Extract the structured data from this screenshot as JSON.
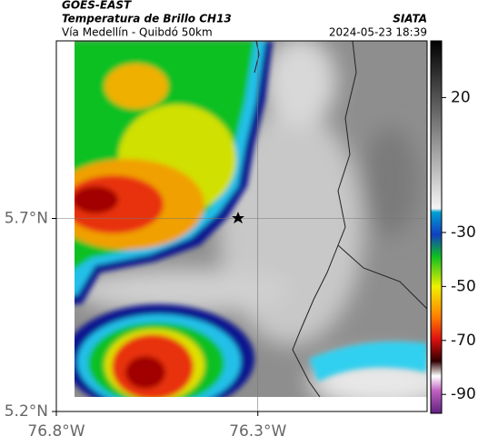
{
  "header": {
    "satellite": "GOES-EAST",
    "product": "Temperatura de Brillo CH13",
    "region": "Vía Medellín - Quibdó 50km",
    "source": "SIATA",
    "timestamp": "2024-05-23 18:39"
  },
  "map": {
    "xlim": [
      -76.8,
      -75.88
    ],
    "ylim": [
      5.2,
      6.16
    ],
    "xticks": [
      {
        "value": -76.8,
        "label": "76.8°W"
      },
      {
        "value": -76.3,
        "label": "76.3°W"
      }
    ],
    "yticks": [
      {
        "value": 5.2,
        "label": "5.2°N"
      },
      {
        "value": 5.7,
        "label": "5.7°N"
      }
    ]
  },
  "colorbar": {
    "clim": [
      41,
      -97
    ],
    "ticks": [
      20,
      -30,
      -50,
      -70,
      -90
    ]
  }
}
